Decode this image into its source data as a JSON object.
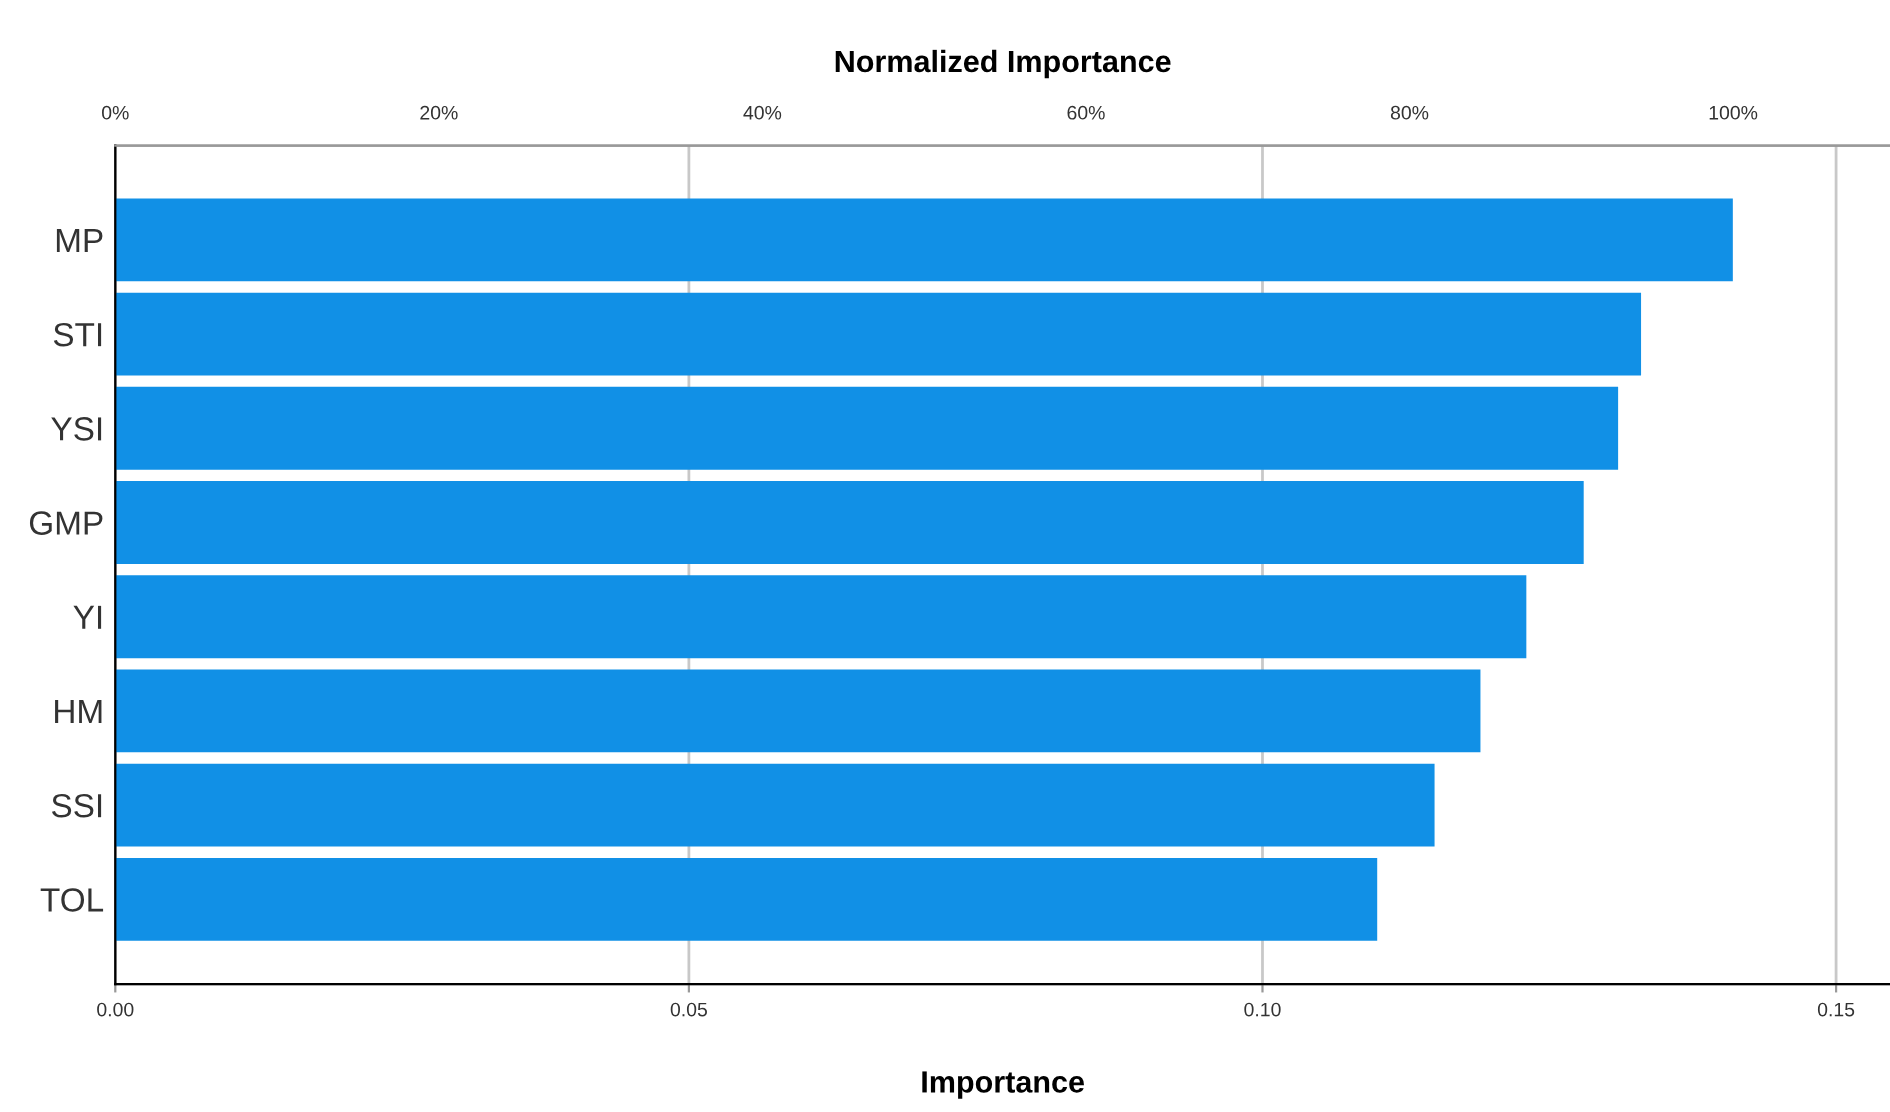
{
  "chart_data": {
    "type": "bar",
    "orientation": "horizontal",
    "categories": [
      "MP",
      "STI",
      "YSI",
      "GMP",
      "YI",
      "HM",
      "SSI",
      "TOL"
    ],
    "values": [
      0.141,
      0.133,
      0.131,
      0.128,
      0.123,
      0.119,
      0.115,
      0.11
    ],
    "color": "#1190e6",
    "xlabel": "Importance",
    "x2label": "Normalized Importance",
    "xlim": [
      0,
      0.1547
    ],
    "xticks": [
      {
        "value": 0,
        "label": "0.00"
      },
      {
        "value": 0.05,
        "label": "0.05"
      },
      {
        "value": 0.1,
        "label": "0.10"
      },
      {
        "value": 0.15,
        "label": "0.15"
      }
    ],
    "x2lim": [
      0,
      109.7
    ],
    "x2ticks": [
      {
        "value": 0,
        "label": "0%"
      },
      {
        "value": 20,
        "label": "20%"
      },
      {
        "value": 40,
        "label": "40%"
      },
      {
        "value": 60,
        "label": "60%"
      },
      {
        "value": 80,
        "label": "80%"
      },
      {
        "value": 100,
        "label": "100%"
      }
    ],
    "grid": "x",
    "legend": false
  }
}
